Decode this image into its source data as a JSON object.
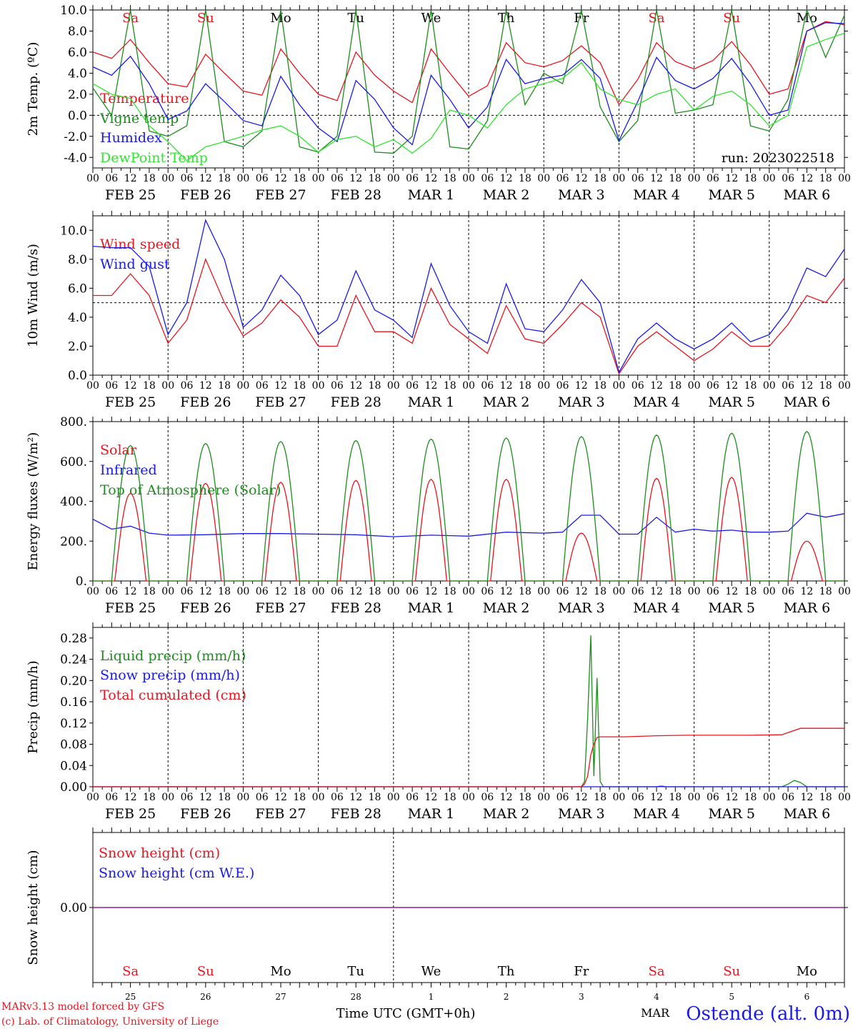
{
  "meta": {
    "credit_lines": [
      "MARv3.13 model forced by GFS",
      "(c) Lab. of Climatology, University of Liege"
    ],
    "station": "Ostende (alt. 0m)",
    "run_label": "run: 2023022518",
    "time_axis_label": "Time UTC (GMT+0h)",
    "bottom_month": "MAR"
  },
  "time_axis": {
    "hours_per_day_ticks": [
      "00",
      "06",
      "12",
      "18"
    ],
    "final_tick": "00",
    "dates": [
      "FEB 25",
      "FEB 26",
      "FEB 27",
      "FEB 28",
      "MAR  1",
      "MAR  2",
      "MAR  3",
      "MAR  4",
      "MAR  5",
      "MAR  6"
    ],
    "weekdays": [
      "Sa",
      "Su",
      "Mo",
      "Tu",
      "We",
      "Th",
      "Fr",
      "Sa",
      "Su",
      "Mo"
    ],
    "weekend_index": [
      0,
      1,
      7,
      8
    ],
    "day_numbers": [
      "25",
      "26",
      "27",
      "28",
      "1",
      "2",
      "3",
      "4",
      "5",
      "6"
    ]
  },
  "colors": {
    "red": "#e8141e",
    "green": "#1e8c1e",
    "blue": "#1a1ae6",
    "lightgreen": "#2fe62f",
    "purple": "#7a1a9a",
    "black": "#000000"
  },
  "chart_data": [
    {
      "type": "line",
      "ylabel": "2m Temp. (ºC)",
      "ylim": [
        -5,
        10
      ],
      "yticks": [
        "-4.0",
        "-2.0",
        "0.0",
        "2.0",
        "4.0",
        "6.0",
        "8.0",
        "10.0"
      ],
      "ytick_values": [
        -4,
        -2,
        0,
        2,
        4,
        6,
        8,
        10
      ],
      "reference_line": 0,
      "x_unit": "hours since FEB 25 00 UTC",
      "series": [
        {
          "name": "Temperature",
          "color": "red",
          "x": [
            0,
            6,
            12,
            18,
            24,
            30,
            36,
            42,
            48,
            54,
            60,
            66,
            72,
            78,
            84,
            90,
            96,
            102,
            108,
            114,
            120,
            126,
            132,
            138,
            144,
            150,
            156,
            162,
            168,
            174,
            180,
            186,
            192,
            198,
            204,
            210,
            216,
            222,
            228,
            234,
            240
          ],
          "values": [
            6.0,
            5.4,
            7.2,
            5.0,
            3.0,
            2.7,
            5.8,
            4.0,
            2.3,
            1.9,
            6.3,
            4.0,
            2.0,
            1.4,
            6.0,
            3.8,
            2.3,
            1.2,
            6.3,
            4.0,
            1.8,
            2.8,
            6.9,
            5.0,
            4.6,
            5.2,
            6.6,
            5.0,
            1.0,
            3.4,
            6.9,
            5.1,
            4.4,
            5.2,
            7.0,
            4.8,
            2.0,
            2.5,
            8.0,
            8.9,
            8.6
          ]
        },
        {
          "name": "Vigne temp",
          "color": "green",
          "x": [
            0,
            6,
            12,
            18,
            24,
            30,
            36,
            42,
            48,
            54,
            60,
            66,
            72,
            78,
            84,
            90,
            96,
            102,
            108,
            114,
            120,
            126,
            132,
            138,
            144,
            150,
            156,
            162,
            168,
            174,
            180,
            186,
            192,
            198,
            204,
            210,
            216,
            222,
            228,
            234,
            240
          ],
          "values": [
            2.6,
            0.0,
            10.0,
            -1.5,
            -2.0,
            -1.0,
            10.0,
            -2.5,
            -3.0,
            -1.5,
            10.0,
            -3.0,
            -3.5,
            -2.0,
            10.0,
            -3.5,
            -3.6,
            -2.0,
            10.0,
            -3.0,
            -3.2,
            -0.5,
            10.0,
            1.0,
            4.0,
            3.0,
            10.0,
            0.8,
            -2.5,
            -0.5,
            10.0,
            0.2,
            0.5,
            1.0,
            10.0,
            -1.0,
            -1.5,
            1.5,
            10.0,
            5.5,
            9.5
          ]
        },
        {
          "name": "Humidex",
          "color": "blue",
          "x": [
            0,
            6,
            12,
            18,
            24,
            30,
            36,
            42,
            48,
            54,
            60,
            66,
            72,
            78,
            84,
            90,
            96,
            102,
            108,
            114,
            120,
            126,
            132,
            138,
            144,
            150,
            156,
            162,
            168,
            174,
            180,
            186,
            192,
            198,
            204,
            210,
            216,
            222,
            228,
            234,
            240
          ],
          "values": [
            4.6,
            3.8,
            5.6,
            3.0,
            -0.4,
            0.4,
            3.0,
            1.3,
            -0.5,
            -1.0,
            3.7,
            1.0,
            -1.2,
            -2.5,
            3.3,
            1.5,
            -1.2,
            -2.8,
            3.8,
            1.5,
            -1.2,
            0.8,
            5.3,
            3.0,
            3.5,
            3.8,
            5.3,
            3.5,
            -2.4,
            1.3,
            5.5,
            3.3,
            2.5,
            3.5,
            5.4,
            3.0,
            0.0,
            0.5,
            8.0,
            8.8,
            8.7
          ]
        },
        {
          "name": "DewPoint Temp",
          "color": "lightgreen",
          "x": [
            0,
            6,
            12,
            18,
            24,
            30,
            36,
            42,
            48,
            54,
            60,
            66,
            72,
            78,
            84,
            90,
            96,
            102,
            108,
            114,
            120,
            126,
            132,
            138,
            144,
            150,
            156,
            162,
            168,
            174,
            180,
            186,
            192,
            198,
            204,
            210,
            216,
            222,
            228,
            234,
            240
          ],
          "values": [
            3.0,
            2.0,
            1.6,
            -1.0,
            -2.5,
            -4.3,
            -3.0,
            -2.5,
            -2.0,
            -1.4,
            -1.0,
            -2.0,
            -3.5,
            -2.3,
            -2.0,
            -3.0,
            -2.3,
            -3.6,
            -2.2,
            0.5,
            0.0,
            -1.2,
            1.0,
            2.5,
            3.0,
            3.5,
            5.0,
            2.5,
            1.5,
            1.0,
            2.0,
            2.5,
            0.5,
            1.8,
            2.3,
            1.0,
            -1.0,
            0.0,
            6.5,
            7.2,
            7.8
          ]
        }
      ]
    },
    {
      "type": "line",
      "ylabel": "10m Wind (m/s)",
      "ylim": [
        0,
        11
      ],
      "yticks": [
        "0.0",
        "2.0",
        "4.0",
        "6.0",
        "8.0",
        "10.0"
      ],
      "ytick_values": [
        0,
        2,
        4,
        6,
        8,
        10
      ],
      "reference_line": 5,
      "series": [
        {
          "name": "Wind speed",
          "color": "red",
          "x": [
            0,
            6,
            12,
            18,
            24,
            30,
            36,
            42,
            48,
            54,
            60,
            66,
            72,
            78,
            84,
            90,
            96,
            102,
            108,
            114,
            120,
            126,
            132,
            138,
            144,
            150,
            156,
            162,
            168,
            174,
            180,
            186,
            192,
            198,
            204,
            210,
            216,
            222,
            228,
            234,
            240
          ],
          "values": [
            5.5,
            5.5,
            7.0,
            5.5,
            2.2,
            3.8,
            8.0,
            5.0,
            2.7,
            3.6,
            5.2,
            4.0,
            2.0,
            2.0,
            5.5,
            3.0,
            3.0,
            2.2,
            6.0,
            3.5,
            2.5,
            1.5,
            4.8,
            2.5,
            2.2,
            3.5,
            5.0,
            4.0,
            0.1,
            2.0,
            3.0,
            2.0,
            1.0,
            1.8,
            3.0,
            2.0,
            2.0,
            3.5,
            5.5,
            5.0,
            6.7
          ]
        },
        {
          "name": "Wind gust",
          "color": "blue",
          "x": [
            0,
            6,
            12,
            18,
            24,
            30,
            36,
            42,
            48,
            54,
            60,
            66,
            72,
            78,
            84,
            90,
            96,
            102,
            108,
            114,
            120,
            126,
            132,
            138,
            144,
            150,
            156,
            162,
            168,
            174,
            180,
            186,
            192,
            198,
            204,
            210,
            216,
            222,
            228,
            234,
            240
          ],
          "values": [
            8.9,
            8.8,
            8.8,
            7.5,
            2.8,
            5.0,
            10.7,
            8.0,
            3.3,
            4.5,
            6.9,
            5.5,
            2.8,
            3.8,
            7.2,
            4.5,
            3.8,
            2.6,
            7.7,
            4.8,
            3.0,
            2.2,
            6.3,
            3.2,
            3.0,
            4.5,
            6.6,
            5.0,
            0.2,
            2.5,
            3.6,
            2.5,
            1.8,
            2.5,
            3.6,
            2.3,
            2.8,
            4.5,
            7.4,
            6.8,
            8.7
          ]
        }
      ]
    },
    {
      "type": "line",
      "ylabel": "Energy fluxes (W/m²)",
      "ylim": [
        0,
        800
      ],
      "yticks": [
        "0.",
        "200.",
        "400.",
        "600.",
        "800."
      ],
      "ytick_values": [
        0,
        200,
        400,
        600,
        800
      ],
      "series": [
        {
          "name": "Solar",
          "color": "red",
          "peaks": [
            440,
            490,
            495,
            505,
            510,
            510,
            240,
            515,
            520,
            200
          ]
        },
        {
          "name": "Infrared",
          "color": "blue",
          "x": [
            0,
            6,
            12,
            18,
            24,
            36,
            48,
            60,
            72,
            84,
            96,
            108,
            120,
            132,
            144,
            150,
            156,
            162,
            168,
            174,
            180,
            186,
            192,
            198,
            204,
            210,
            216,
            222,
            228,
            234,
            240
          ],
          "values": [
            310,
            260,
            275,
            240,
            230,
            232,
            238,
            238,
            235,
            232,
            222,
            230,
            225,
            245,
            240,
            245,
            330,
            330,
            235,
            235,
            320,
            245,
            260,
            250,
            255,
            245,
            245,
            250,
            340,
            320,
            338
          ]
        },
        {
          "name": "Top of Atmosphere (Solar)",
          "color": "green",
          "peaks": [
            680,
            690,
            700,
            705,
            712,
            718,
            725,
            733,
            742,
            750
          ]
        }
      ]
    },
    {
      "type": "line",
      "ylabel": "Precip (mm/h)",
      "ylim": [
        0,
        0.3
      ],
      "yticks": [
        "0.00",
        "0.04",
        "0.08",
        "0.12",
        "0.16",
        "0.20",
        "0.24",
        "0.28"
      ],
      "ytick_values": [
        0,
        0.04,
        0.08,
        0.12,
        0.16,
        0.2,
        0.24,
        0.28
      ],
      "series": [
        {
          "name": "Liquid precip (mm/h)",
          "color": "green",
          "x": [
            0,
            156,
            157,
            158,
            159,
            160,
            161,
            162,
            163,
            164,
            165,
            216,
            220,
            222,
            224,
            226,
            228,
            240
          ],
          "values": [
            0,
            0,
            0.01,
            0.13,
            0.285,
            0.02,
            0.205,
            0.01,
            0,
            0,
            0,
            0,
            0,
            0.005,
            0.012,
            0.008,
            0,
            0
          ]
        },
        {
          "name": "Snow precip (mm/h)",
          "color": "blue",
          "x": [
            0,
            180,
            181,
            182,
            183,
            240
          ],
          "values": [
            0,
            0,
            0.001,
            0.001,
            0,
            0
          ]
        },
        {
          "name": "Total cumulated (cm)",
          "color": "red",
          "x": [
            0,
            156,
            157,
            158,
            159,
            160,
            161,
            162,
            170,
            180,
            190,
            200,
            210,
            220,
            226,
            240
          ],
          "values": [
            0,
            0,
            0.005,
            0.02,
            0.06,
            0.08,
            0.093,
            0.094,
            0.094,
            0.096,
            0.097,
            0.097,
            0.097,
            0.098,
            0.11,
            0.11
          ]
        }
      ]
    },
    {
      "type": "line",
      "ylabel": "Snow height (cm)",
      "ylim": [
        -1,
        1
      ],
      "yticks": [
        "0.00"
      ],
      "ytick_values": [
        0
      ],
      "series": [
        {
          "name": "Snow height (cm)",
          "color": "red",
          "x": [
            0,
            240
          ],
          "values": [
            0,
            0
          ]
        },
        {
          "name": "Snow height (cm W.E.)",
          "color": "blue",
          "x": [
            0,
            240
          ],
          "values": [
            0,
            0
          ]
        }
      ]
    }
  ]
}
